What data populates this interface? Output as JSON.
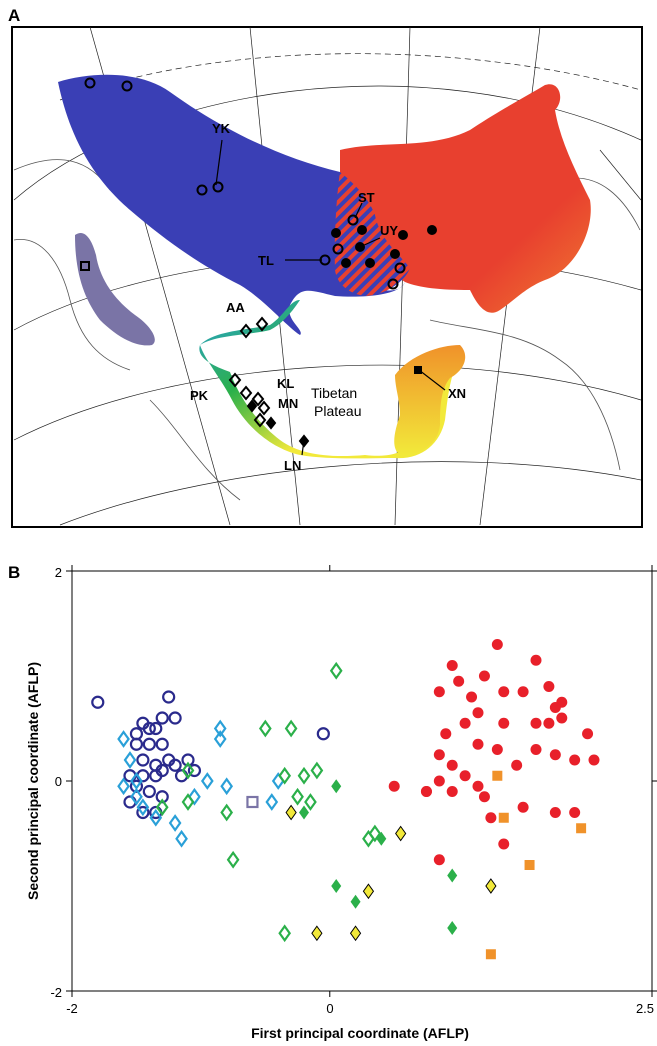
{
  "panels": {
    "a": "A",
    "b": "B"
  },
  "map": {
    "site_labels": [
      "YK",
      "ST",
      "UY",
      "TL",
      "AA",
      "PK",
      "KL",
      "MN",
      "LN",
      "XN"
    ],
    "region_label_line1": "Tibetan",
    "region_label_line2": "Plateau",
    "colors": {
      "north_group": "#3a3fb5",
      "east_group": "#e8402f",
      "south_gradient": [
        "#2aa0d8",
        "#2bb04a",
        "#f2e93a",
        "#f08a2a"
      ],
      "isolated_site": "#7a74a6"
    }
  },
  "chart_data": {
    "type": "scatter",
    "xlabel": "First principal coordinate (AFLP)",
    "ylabel": "Second principal coordinate (AFLP)",
    "xlim": [
      -2,
      2.5
    ],
    "ylim": [
      -2,
      2
    ],
    "x_ticks": [
      "-2",
      "0",
      "2.5"
    ],
    "y_ticks": [
      "2",
      "0",
      "-2"
    ],
    "grid": false,
    "series": [
      {
        "marker": "circle-open",
        "color": "#2a2a8c",
        "points": [
          [
            -1.8,
            0.75
          ],
          [
            -1.45,
            0.55
          ],
          [
            -1.4,
            0.5
          ],
          [
            -1.5,
            0.45
          ],
          [
            -1.35,
            0.5
          ],
          [
            -1.3,
            0.6
          ],
          [
            -1.25,
            0.8
          ],
          [
            -1.2,
            0.6
          ],
          [
            -1.5,
            0.35
          ],
          [
            -1.4,
            0.35
          ],
          [
            -1.3,
            0.35
          ],
          [
            -1.45,
            0.2
          ],
          [
            -1.35,
            0.15
          ],
          [
            -1.25,
            0.2
          ],
          [
            -1.3,
            0.1
          ],
          [
            -1.2,
            0.15
          ],
          [
            -1.55,
            0.05
          ],
          [
            -1.45,
            0.05
          ],
          [
            -1.35,
            0.05
          ],
          [
            -1.15,
            0.05
          ],
          [
            -1.1,
            0.2
          ],
          [
            -1.5,
            -0.05
          ],
          [
            -1.4,
            -0.1
          ],
          [
            -1.3,
            -0.15
          ],
          [
            -1.55,
            -0.2
          ],
          [
            -1.45,
            -0.3
          ],
          [
            -1.35,
            -0.3
          ],
          [
            -1.05,
            0.1
          ],
          [
            -0.05,
            0.45
          ]
        ]
      },
      {
        "marker": "diamond-open",
        "color": "#2aa0d8",
        "points": [
          [
            -1.6,
            0.4
          ],
          [
            -1.55,
            0.2
          ],
          [
            -1.5,
            0.0
          ],
          [
            -1.6,
            -0.05
          ],
          [
            -1.5,
            -0.15
          ],
          [
            -1.45,
            -0.25
          ],
          [
            -1.35,
            -0.35
          ],
          [
            -1.2,
            -0.4
          ],
          [
            -1.05,
            -0.15
          ],
          [
            -0.95,
            0.0
          ],
          [
            -0.85,
            0.5
          ],
          [
            -0.85,
            0.4
          ],
          [
            -0.8,
            -0.05
          ],
          [
            -1.15,
            -0.55
          ],
          [
            -0.4,
            0.0
          ],
          [
            -0.45,
            -0.2
          ]
        ]
      },
      {
        "marker": "diamond-open",
        "color": "#2bb04a",
        "points": [
          [
            -1.3,
            -0.25
          ],
          [
            -1.1,
            0.1
          ],
          [
            -1.1,
            -0.2
          ],
          [
            -0.8,
            -0.3
          ],
          [
            -0.75,
            -0.75
          ],
          [
            -0.5,
            0.5
          ],
          [
            -0.35,
            0.05
          ],
          [
            -0.25,
            -0.15
          ],
          [
            -0.2,
            0.05
          ],
          [
            -0.15,
            -0.2
          ],
          [
            -0.1,
            0.1
          ],
          [
            0.05,
            1.05
          ],
          [
            -0.3,
            0.5
          ],
          [
            -0.35,
            -1.45
          ],
          [
            0.3,
            -0.55
          ],
          [
            0.35,
            -0.5
          ]
        ]
      },
      {
        "marker": "diamond-filled",
        "color": "#2bb04a",
        "points": [
          [
            0.05,
            -0.05
          ],
          [
            0.05,
            -1.0
          ],
          [
            0.2,
            -1.15
          ],
          [
            0.4,
            -0.55
          ],
          [
            0.95,
            -0.9
          ],
          [
            0.95,
            -1.4
          ],
          [
            -0.2,
            -0.3
          ]
        ]
      },
      {
        "marker": "diamond-filled",
        "color": "#f2e93a",
        "points": [
          [
            -0.3,
            -0.3
          ],
          [
            -0.1,
            -1.45
          ],
          [
            0.2,
            -1.45
          ],
          [
            0.3,
            -1.05
          ],
          [
            0.55,
            -0.5
          ],
          [
            1.25,
            -1.0
          ]
        ]
      },
      {
        "marker": "circle-filled",
        "color": "#e8202a",
        "points": [
          [
            0.85,
            0.85
          ],
          [
            0.95,
            1.1
          ],
          [
            1.0,
            0.95
          ],
          [
            1.1,
            0.8
          ],
          [
            1.2,
            1.0
          ],
          [
            1.3,
            1.3
          ],
          [
            1.35,
            0.85
          ],
          [
            1.5,
            0.85
          ],
          [
            1.6,
            1.15
          ],
          [
            1.7,
            0.9
          ],
          [
            1.75,
            0.7
          ],
          [
            1.8,
            0.75
          ],
          [
            1.7,
            0.55
          ],
          [
            1.8,
            0.6
          ],
          [
            1.6,
            0.55
          ],
          [
            1.35,
            0.55
          ],
          [
            1.15,
            0.65
          ],
          [
            1.05,
            0.55
          ],
          [
            0.9,
            0.45
          ],
          [
            1.15,
            0.35
          ],
          [
            1.3,
            0.3
          ],
          [
            1.45,
            0.15
          ],
          [
            1.6,
            0.3
          ],
          [
            1.75,
            0.25
          ],
          [
            1.9,
            0.2
          ],
          [
            2.0,
            0.45
          ],
          [
            2.05,
            0.2
          ],
          [
            0.85,
            0.25
          ],
          [
            0.95,
            0.15
          ],
          [
            1.05,
            0.05
          ],
          [
            1.15,
            -0.05
          ],
          [
            1.2,
            -0.15
          ],
          [
            1.25,
            -0.35
          ],
          [
            0.75,
            -0.1
          ],
          [
            0.85,
            0.0
          ],
          [
            0.95,
            -0.1
          ],
          [
            1.35,
            -0.6
          ],
          [
            1.5,
            -0.25
          ],
          [
            1.75,
            -0.3
          ],
          [
            1.9,
            -0.3
          ],
          [
            0.85,
            -0.75
          ],
          [
            0.75,
            -0.1
          ],
          [
            0.5,
            -0.05
          ]
        ]
      },
      {
        "marker": "square-filled",
        "color": "#f0922a",
        "points": [
          [
            1.3,
            0.05
          ],
          [
            1.35,
            -0.35
          ],
          [
            1.55,
            -0.8
          ],
          [
            1.95,
            -0.45
          ],
          [
            1.25,
            -1.65
          ]
        ]
      },
      {
        "marker": "square-open",
        "color": "#7a74a6",
        "points": [
          [
            -0.6,
            -0.2
          ]
        ]
      }
    ]
  }
}
